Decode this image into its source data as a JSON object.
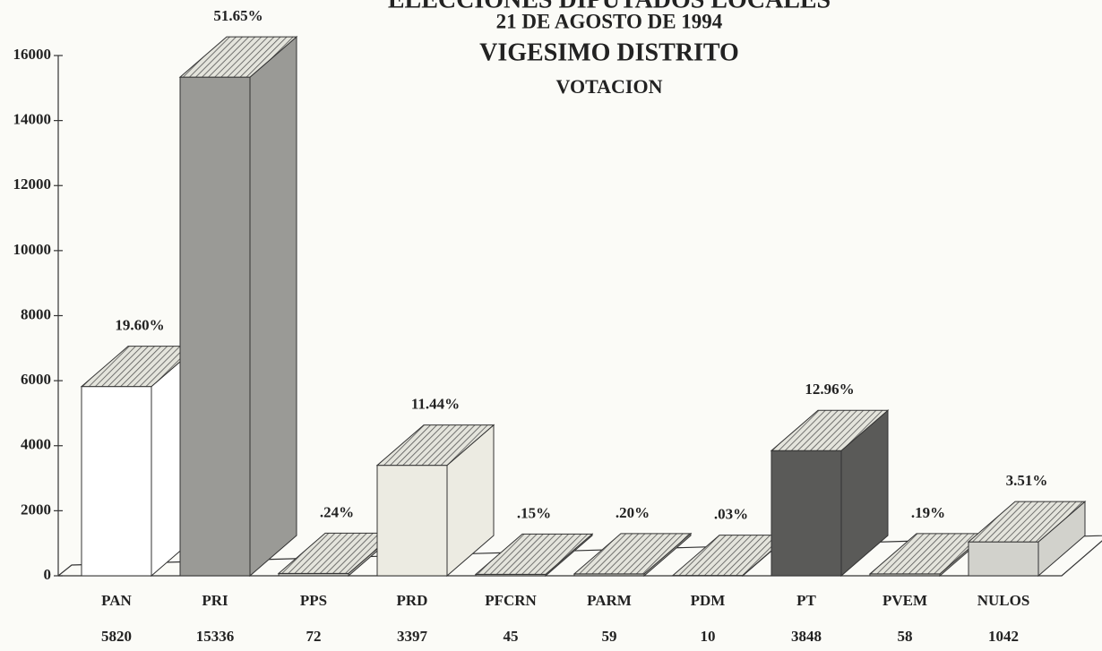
{
  "chart_data": {
    "type": "bar3d",
    "title": "ELECCIONES DIPUTADOS LOCALES",
    "subtitles": [
      "21 DE AGOSTO DE 1994",
      "VIGESIMO DISTRITO",
      "VOTACION"
    ],
    "categories": [
      "PAN",
      "PRI",
      "PPS",
      "PRD",
      "PFCRN",
      "PARM",
      "PDM",
      "PT",
      "PVEM",
      "NULOS"
    ],
    "values": [
      5820,
      15336,
      72,
      3397,
      45,
      59,
      10,
      3848,
      58,
      1042
    ],
    "percentages": [
      19.6,
      51.65,
      0.24,
      11.44,
      0.15,
      0.2,
      0.03,
      12.96,
      0.19,
      3.51
    ],
    "percentage_labels": [
      "19.60%",
      "51.65%",
      ".24%",
      "11.44%",
      ".15%",
      ".20%",
      ".03%",
      "12.96%",
      ".19%",
      "3.51%"
    ],
    "colors": [
      "#ffffff",
      "#9a9a96",
      "#b8b8b2",
      "#ecebe2",
      "#bdbdb5",
      "#bdbdb5",
      "#bdbdb5",
      "#5a5a58",
      "#bdbdb5",
      "#d2d2cc"
    ],
    "ylim": [
      0,
      16000
    ],
    "yticks": [
      0,
      2000,
      4000,
      6000,
      8000,
      10000,
      12000,
      14000,
      16000
    ]
  }
}
